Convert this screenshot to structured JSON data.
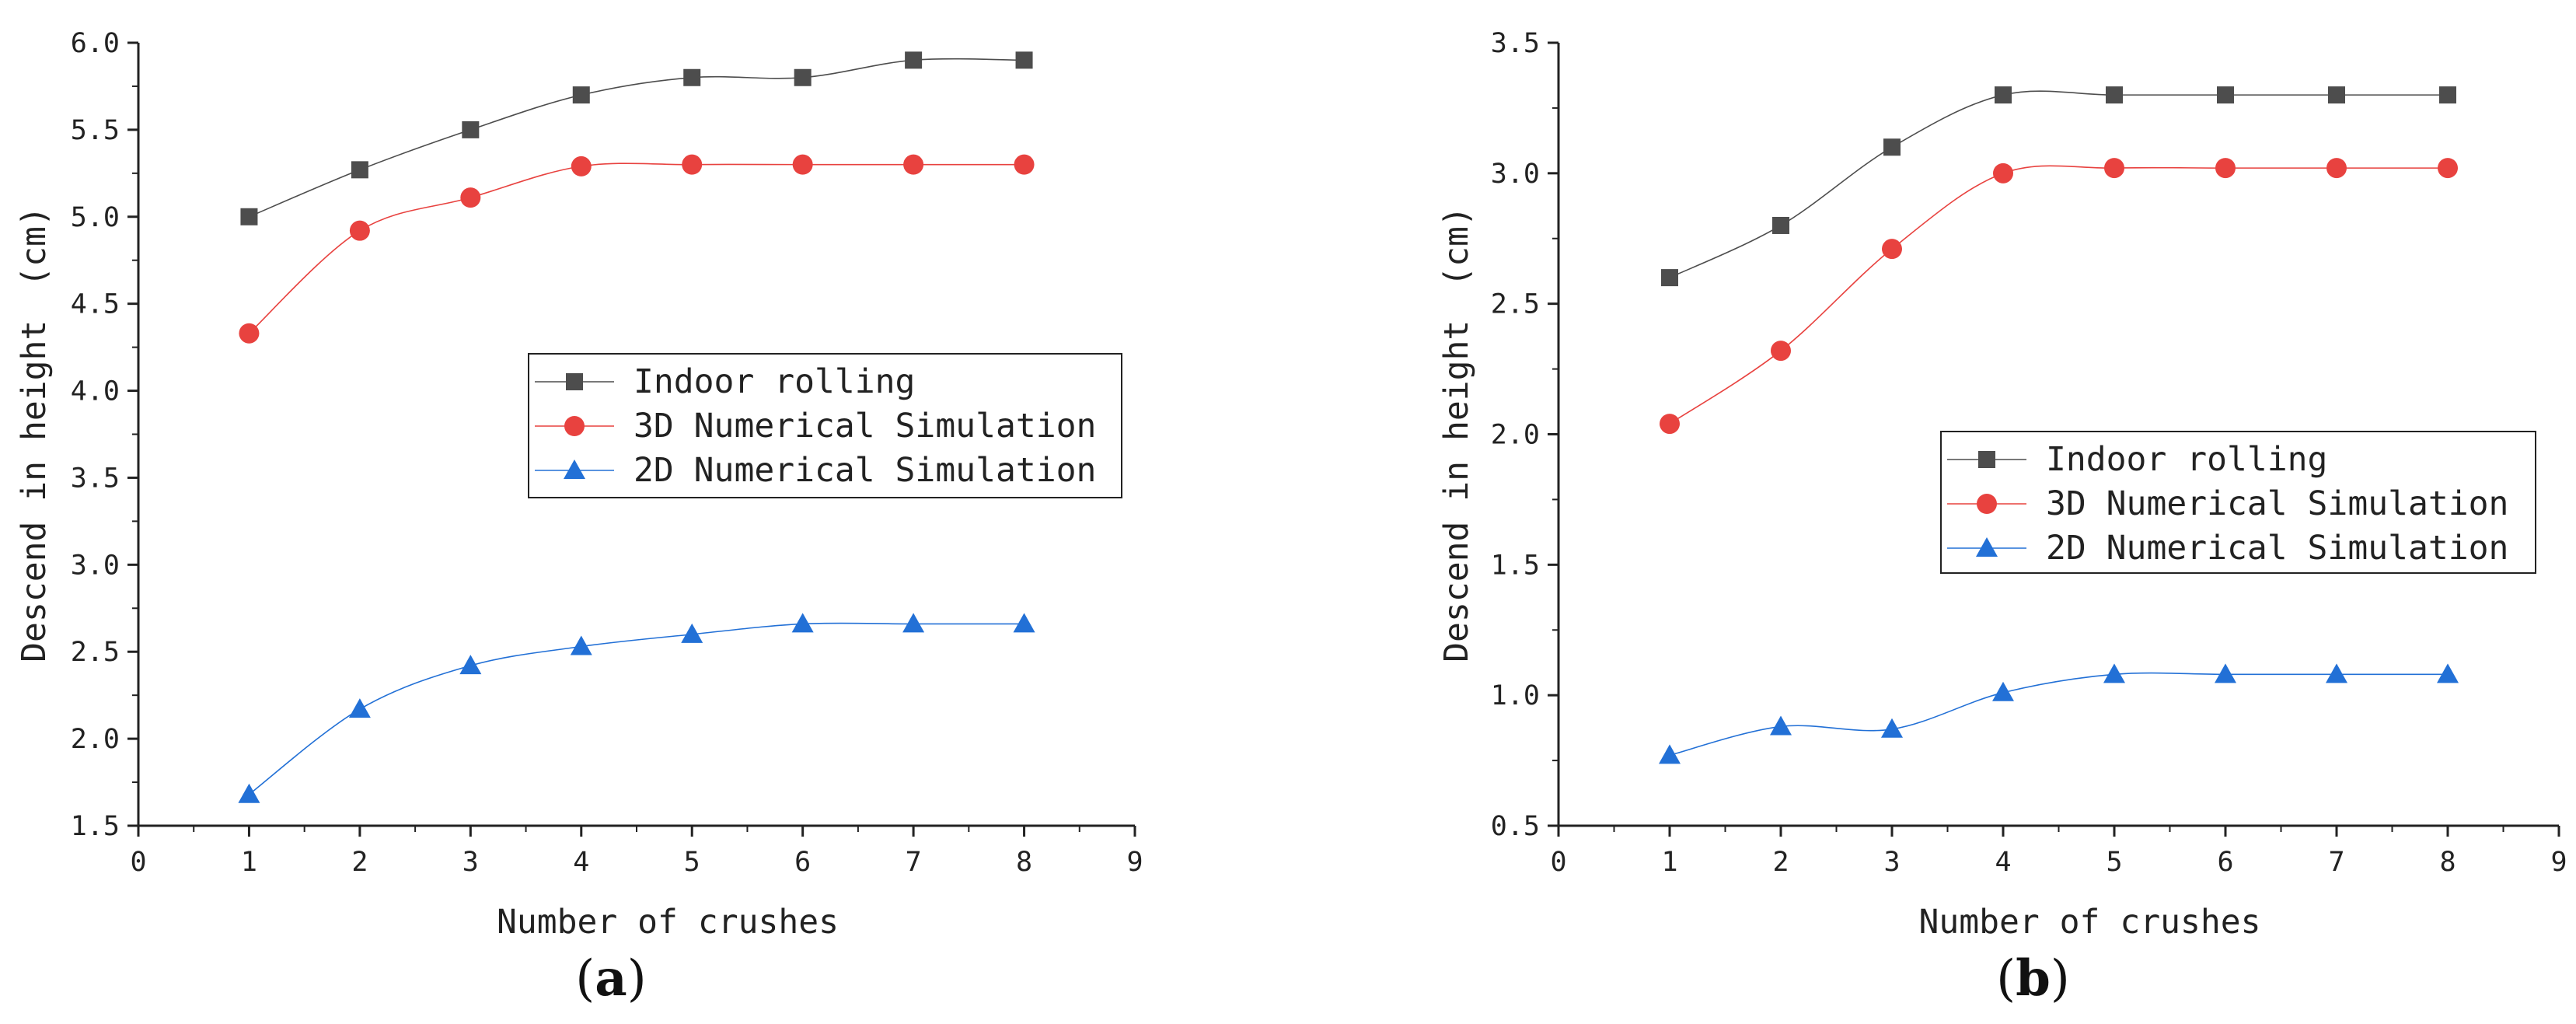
{
  "chart_data": [
    {
      "type": "line",
      "panel_label": "a",
      "xlabel": "Number of crushes",
      "ylabel": "Descend in height　(cm)",
      "xlim": [
        0,
        9
      ],
      "ylim": [
        1.5,
        6.0
      ],
      "xticks": [
        "0",
        "1",
        "2",
        "3",
        "4",
        "5",
        "6",
        "7",
        "8",
        "9"
      ],
      "yticks": [
        "1.5",
        "2.0",
        "2.5",
        "3.0",
        "3.5",
        "4.0",
        "4.5",
        "5.0",
        "5.5",
        "6.0"
      ],
      "x": [
        1,
        2,
        3,
        4,
        5,
        6,
        7,
        8
      ],
      "legend_position": "center-right",
      "series": [
        {
          "name": "Indoor rolling",
          "marker": "square",
          "color": "#4d4d4d",
          "values": [
            5.0,
            5.27,
            5.5,
            5.7,
            5.8,
            5.8,
            5.9,
            5.9
          ]
        },
        {
          "name": "3D Numerical Simulation",
          "marker": "circle",
          "color": "#e8423f",
          "values": [
            4.33,
            4.92,
            5.11,
            5.29,
            5.3,
            5.3,
            5.3,
            5.3
          ]
        },
        {
          "name": "2D Numerical Simulation",
          "marker": "triangle",
          "color": "#2270d6",
          "values": [
            1.68,
            2.17,
            2.42,
            2.53,
            2.6,
            2.66,
            2.66,
            2.66
          ]
        }
      ]
    },
    {
      "type": "line",
      "panel_label": "b",
      "xlabel": "Number of crushes",
      "ylabel": "Descend in height　(cm)",
      "xlim": [
        0,
        9
      ],
      "ylim": [
        0.5,
        3.5
      ],
      "xticks": [
        "0",
        "1",
        "2",
        "3",
        "4",
        "5",
        "6",
        "7",
        "8",
        "9"
      ],
      "yticks": [
        "0.5",
        "1.0",
        "1.5",
        "2.0",
        "2.5",
        "3.0",
        "3.5"
      ],
      "x": [
        1,
        2,
        3,
        4,
        5,
        6,
        7,
        8
      ],
      "legend_position": "center-right",
      "series": [
        {
          "name": "Indoor rolling",
          "marker": "square",
          "color": "#4d4d4d",
          "values": [
            2.6,
            2.8,
            3.1,
            3.3,
            3.3,
            3.3,
            3.3,
            3.3
          ]
        },
        {
          "name": "3D Numerical Simulation",
          "marker": "circle",
          "color": "#e8423f",
          "values": [
            2.04,
            2.32,
            2.71,
            3.0,
            3.02,
            3.02,
            3.02,
            3.02
          ]
        },
        {
          "name": "2D Numerical Simulation",
          "marker": "triangle",
          "color": "#2270d6",
          "values": [
            0.77,
            0.88,
            0.87,
            1.01,
            1.08,
            1.08,
            1.08,
            1.08
          ]
        }
      ]
    }
  ]
}
